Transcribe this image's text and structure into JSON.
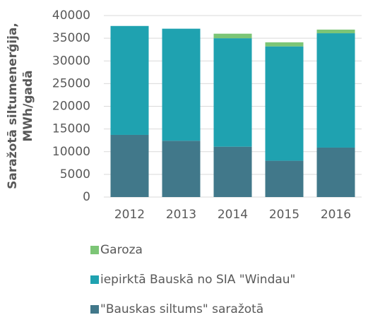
{
  "chart_data": {
    "type": "stacked_bar",
    "ylabel": [
      "Saražotā siltumenerģija,",
      "MWh/gadā"
    ],
    "categories": [
      "2012",
      "2013",
      "2014",
      "2015",
      "2016"
    ],
    "series": [
      {
        "name": "\"Bauskas siltums\" saražotā",
        "color": "#41788a",
        "values": [
          13700,
          12400,
          11100,
          8000,
          10900
        ]
      },
      {
        "name": "iepirktā Bauskā no SIA \"Windau\"",
        "color": "#1fa2b0",
        "values": [
          24000,
          24700,
          23900,
          25200,
          25200
        ]
      },
      {
        "name": "Garoza",
        "color": "#7cc576",
        "values": [
          0,
          0,
          1000,
          900,
          800
        ]
      }
    ],
    "ylim": [
      0,
      40000
    ],
    "yticks": [
      0,
      5000,
      10000,
      15000,
      20000,
      25000,
      30000,
      35000,
      40000
    ],
    "grid": true,
    "legend": "bottom"
  }
}
